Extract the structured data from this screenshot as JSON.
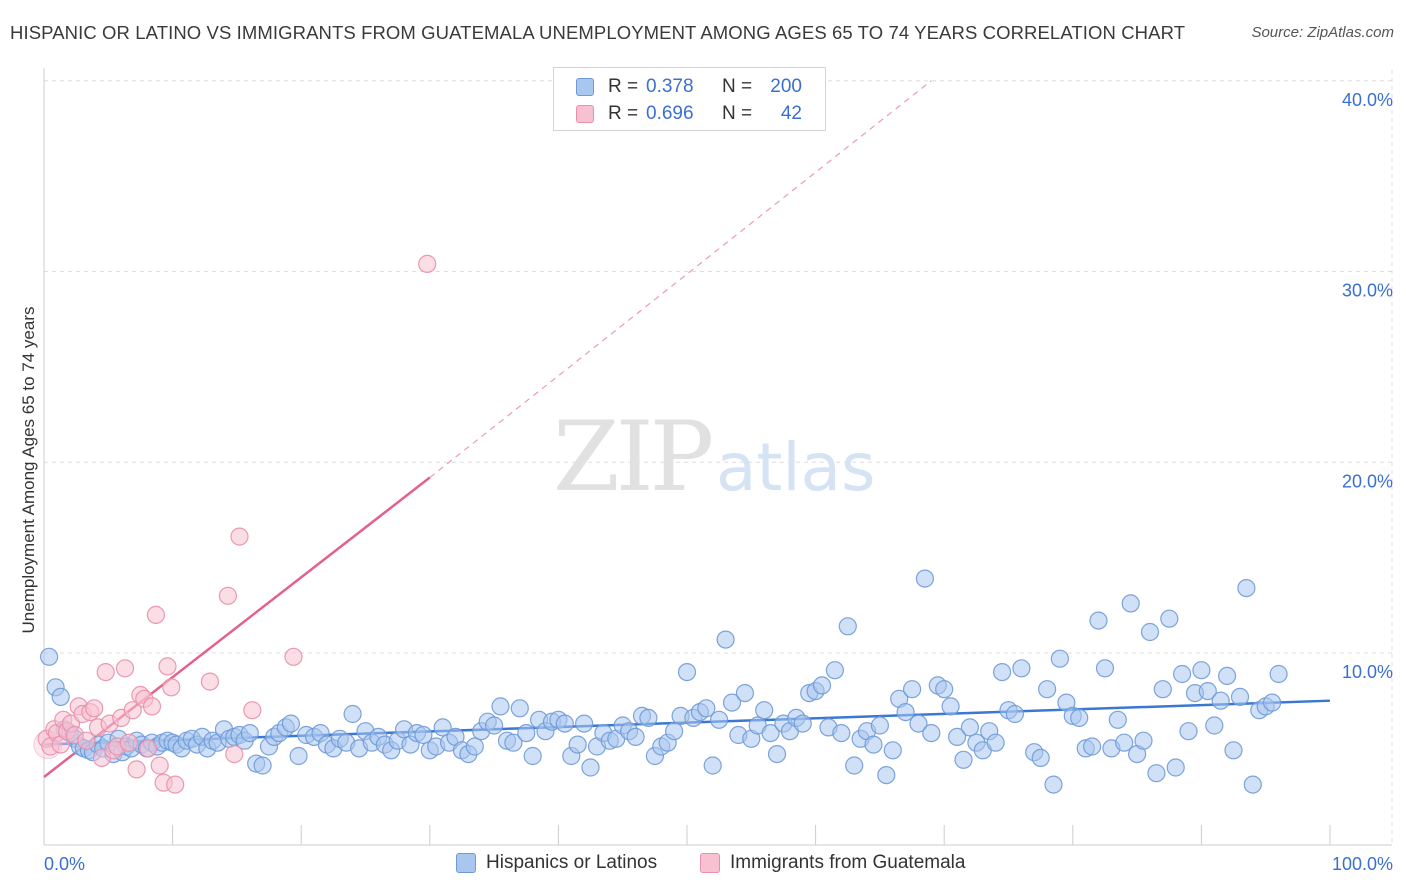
{
  "title": "HISPANIC OR LATINO VS IMMIGRANTS FROM GUATEMALA UNEMPLOYMENT AMONG AGES 65 TO 74 YEARS CORRELATION CHART",
  "source": "Source: ZipAtlas.com",
  "watermark": {
    "zip": "ZIP",
    "atlas": "atlas"
  },
  "legend_top": [
    {
      "r_label": "R =",
      "r_value": "0.378",
      "n_label": "N =",
      "n_value": "200",
      "color": "#a9c7ee",
      "border": "#6f9ad8"
    },
    {
      "r_label": "R =",
      "r_value": "0.696",
      "n_label": "N =",
      "n_value": "42",
      "color": "#f7c1d2",
      "border": "#e88fab"
    }
  ],
  "colors": {
    "blue_fill": "#a9c7ee",
    "blue_stroke": "#6f9ad8",
    "blue_line": "#3a78d4",
    "pink_fill": "#f7c1d2",
    "pink_stroke": "#e88fab",
    "pink_line": "#e3628b",
    "grid": "#dddddd",
    "tick_label": "#3a6fd1"
  },
  "chart_data": {
    "type": "scatter",
    "title": "HISPANIC OR LATINO VS IMMIGRANTS FROM GUATEMALA UNEMPLOYMENT AMONG AGES 65 TO 74 YEARS CORRELATION CHART",
    "xlabel": "",
    "ylabel": "Unemployment Among Ages 65 to 74 years",
    "xlim": [
      0,
      100
    ],
    "ylim": [
      0,
      41
    ],
    "x_tick_labels": [
      "0.0%",
      "100.0%"
    ],
    "y_ticks": [
      10,
      20,
      30,
      40
    ],
    "y_tick_labels": [
      "10.0%",
      "20.0%",
      "30.0%",
      "40.0%"
    ],
    "grid": true,
    "legend_position": "bottom",
    "series": [
      {
        "name": "Hispanics or Latinos",
        "r": 0.378,
        "n": 200,
        "trend": {
          "x": [
            0,
            100
          ],
          "y": [
            5.2,
            7.5
          ],
          "dashed": false
        },
        "points": [
          [
            0.4,
            9.8
          ],
          [
            0.9,
            8.2
          ],
          [
            1.3,
            7.7
          ],
          [
            1.6,
            6.0
          ],
          [
            2.0,
            5.8
          ],
          [
            2.4,
            5.5
          ],
          [
            2.8,
            5.1
          ],
          [
            3.1,
            5.0
          ],
          [
            3.5,
            4.9
          ],
          [
            3.8,
            4.8
          ],
          [
            4.2,
            5.2
          ],
          [
            4.6,
            5.0
          ],
          [
            5.0,
            5.3
          ],
          [
            5.4,
            4.7
          ],
          [
            5.8,
            5.5
          ],
          [
            6.1,
            4.8
          ],
          [
            6.4,
            5.1
          ],
          [
            6.8,
            5.0
          ],
          [
            7.2,
            5.4
          ],
          [
            7.6,
            5.2
          ],
          [
            8.0,
            5.0
          ],
          [
            8.4,
            5.3
          ],
          [
            8.8,
            5.1
          ],
          [
            9.2,
            5.3
          ],
          [
            9.6,
            5.4
          ],
          [
            10.0,
            5.3
          ],
          [
            10.3,
            5.2
          ],
          [
            10.7,
            5.0
          ],
          [
            11.1,
            5.4
          ],
          [
            11.5,
            5.5
          ],
          [
            11.9,
            5.2
          ],
          [
            12.3,
            5.6
          ],
          [
            12.7,
            5.0
          ],
          [
            13.1,
            5.4
          ],
          [
            13.5,
            5.3
          ],
          [
            14.0,
            6.0
          ],
          [
            14.4,
            5.5
          ],
          [
            14.8,
            5.6
          ],
          [
            15.2,
            5.7
          ],
          [
            15.6,
            5.4
          ],
          [
            16.0,
            5.8
          ],
          [
            16.5,
            4.2
          ],
          [
            17.0,
            4.1
          ],
          [
            17.5,
            5.1
          ],
          [
            17.9,
            5.6
          ],
          [
            18.3,
            5.8
          ],
          [
            18.8,
            6.1
          ],
          [
            19.2,
            6.3
          ],
          [
            19.8,
            4.6
          ],
          [
            20.4,
            5.7
          ],
          [
            21.0,
            5.6
          ],
          [
            21.5,
            5.8
          ],
          [
            22.0,
            5.2
          ],
          [
            22.5,
            5.0
          ],
          [
            23.0,
            5.5
          ],
          [
            23.5,
            5.3
          ],
          [
            24.0,
            6.8
          ],
          [
            24.5,
            5.0
          ],
          [
            25.0,
            5.9
          ],
          [
            25.5,
            5.3
          ],
          [
            26.0,
            5.6
          ],
          [
            26.5,
            5.2
          ],
          [
            27.0,
            4.9
          ],
          [
            27.5,
            5.4
          ],
          [
            28.0,
            6.0
          ],
          [
            28.5,
            5.2
          ],
          [
            29.0,
            5.8
          ],
          [
            29.5,
            5.7
          ],
          [
            30.0,
            4.9
          ],
          [
            30.5,
            5.1
          ],
          [
            31.0,
            6.1
          ],
          [
            31.5,
            5.3
          ],
          [
            32.0,
            5.6
          ],
          [
            32.5,
            4.9
          ],
          [
            33.0,
            4.7
          ],
          [
            33.5,
            5.1
          ],
          [
            34.0,
            5.9
          ],
          [
            34.5,
            6.4
          ],
          [
            35.0,
            6.2
          ],
          [
            35.5,
            7.2
          ],
          [
            36.0,
            5.4
          ],
          [
            36.5,
            5.3
          ],
          [
            37.0,
            7.1
          ],
          [
            37.5,
            5.8
          ],
          [
            38.0,
            4.6
          ],
          [
            38.5,
            6.5
          ],
          [
            39.0,
            5.9
          ],
          [
            39.5,
            6.4
          ],
          [
            40.0,
            6.5
          ],
          [
            40.5,
            6.3
          ],
          [
            41.0,
            4.6
          ],
          [
            41.5,
            5.2
          ],
          [
            42.0,
            6.3
          ],
          [
            42.5,
            4.0
          ],
          [
            43.0,
            5.1
          ],
          [
            43.5,
            5.8
          ],
          [
            44.0,
            5.4
          ],
          [
            44.5,
            5.5
          ],
          [
            45.0,
            6.2
          ],
          [
            45.5,
            5.9
          ],
          [
            46.0,
            5.6
          ],
          [
            46.5,
            6.7
          ],
          [
            47.0,
            6.6
          ],
          [
            47.5,
            4.6
          ],
          [
            48.0,
            5.1
          ],
          [
            48.5,
            5.3
          ],
          [
            49.0,
            5.9
          ],
          [
            49.5,
            6.7
          ],
          [
            50.0,
            9.0
          ],
          [
            50.5,
            6.6
          ],
          [
            51.0,
            6.9
          ],
          [
            51.5,
            7.1
          ],
          [
            52.0,
            4.1
          ],
          [
            52.5,
            6.5
          ],
          [
            53.0,
            10.7
          ],
          [
            53.5,
            7.4
          ],
          [
            54.0,
            5.7
          ],
          [
            54.5,
            7.9
          ],
          [
            55.0,
            5.5
          ],
          [
            55.5,
            6.2
          ],
          [
            56.0,
            7.0
          ],
          [
            56.5,
            5.8
          ],
          [
            57.0,
            4.7
          ],
          [
            57.5,
            6.3
          ],
          [
            58.0,
            5.9
          ],
          [
            58.5,
            6.6
          ],
          [
            59.0,
            6.3
          ],
          [
            59.5,
            7.9
          ],
          [
            60.0,
            8.0
          ],
          [
            60.5,
            8.3
          ],
          [
            61.0,
            6.1
          ],
          [
            61.5,
            9.1
          ],
          [
            62.0,
            5.8
          ],
          [
            62.5,
            11.4
          ],
          [
            63.0,
            4.1
          ],
          [
            63.5,
            5.5
          ],
          [
            64.0,
            5.9
          ],
          [
            64.5,
            5.2
          ],
          [
            65.0,
            6.2
          ],
          [
            65.5,
            3.6
          ],
          [
            66.0,
            4.9
          ],
          [
            66.5,
            7.6
          ],
          [
            67.0,
            6.9
          ],
          [
            67.5,
            8.1
          ],
          [
            68.0,
            6.3
          ],
          [
            68.5,
            13.9
          ],
          [
            69.0,
            5.8
          ],
          [
            69.5,
            8.3
          ],
          [
            70.0,
            8.1
          ],
          [
            70.5,
            7.2
          ],
          [
            71.0,
            5.6
          ],
          [
            71.5,
            4.4
          ],
          [
            72.0,
            6.1
          ],
          [
            72.5,
            5.3
          ],
          [
            73.0,
            4.9
          ],
          [
            73.5,
            5.9
          ],
          [
            74.0,
            5.3
          ],
          [
            74.5,
            9.0
          ],
          [
            75.0,
            7.0
          ],
          [
            75.5,
            6.8
          ],
          [
            76.0,
            9.2
          ],
          [
            77.0,
            4.8
          ],
          [
            77.5,
            4.5
          ],
          [
            78.0,
            8.1
          ],
          [
            78.5,
            3.1
          ],
          [
            79.0,
            9.7
          ],
          [
            79.5,
            7.4
          ],
          [
            80.0,
            6.7
          ],
          [
            80.5,
            6.6
          ],
          [
            81.0,
            5.0
          ],
          [
            81.5,
            5.1
          ],
          [
            82.0,
            11.7
          ],
          [
            82.5,
            9.2
          ],
          [
            83.0,
            5.0
          ],
          [
            83.5,
            6.5
          ],
          [
            84.0,
            5.3
          ],
          [
            84.5,
            12.6
          ],
          [
            85.0,
            4.7
          ],
          [
            85.5,
            5.4
          ],
          [
            86.0,
            11.1
          ],
          [
            86.5,
            3.7
          ],
          [
            87.0,
            8.1
          ],
          [
            87.5,
            11.8
          ],
          [
            88.0,
            4.0
          ],
          [
            88.5,
            8.9
          ],
          [
            89.0,
            5.9
          ],
          [
            89.5,
            7.9
          ],
          [
            90.0,
            9.1
          ],
          [
            90.5,
            8.0
          ],
          [
            91.0,
            6.2
          ],
          [
            91.5,
            7.5
          ],
          [
            92.0,
            8.8
          ],
          [
            92.5,
            4.9
          ],
          [
            93.0,
            7.7
          ],
          [
            93.5,
            13.4
          ],
          [
            94.0,
            3.1
          ],
          [
            94.5,
            7.0
          ],
          [
            95.0,
            7.2
          ],
          [
            95.5,
            7.4
          ],
          [
            96.0,
            8.9
          ]
        ]
      },
      {
        "name": "Immigrants from Guatemala",
        "r": 0.696,
        "n": 42,
        "trend": {
          "x": [
            0,
            30
          ],
          "y": [
            3.5,
            19.2
          ],
          "dashed": false,
          "extension": {
            "x": [
              30,
              69
            ],
            "y": [
              19.2,
              40.0
            ],
            "dashed": true
          }
        },
        "points": [
          [
            0.2,
            5.5
          ],
          [
            0.5,
            5.1
          ],
          [
            0.8,
            6.0
          ],
          [
            1.0,
            5.8
          ],
          [
            1.3,
            5.2
          ],
          [
            1.5,
            6.5
          ],
          [
            1.8,
            5.9
          ],
          [
            2.1,
            6.3
          ],
          [
            2.4,
            5.7
          ],
          [
            2.7,
            7.2
          ],
          [
            3.0,
            6.8
          ],
          [
            3.3,
            5.4
          ],
          [
            3.6,
            6.9
          ],
          [
            3.9,
            7.1
          ],
          [
            4.2,
            6.1
          ],
          [
            4.5,
            4.5
          ],
          [
            4.8,
            9.0
          ],
          [
            5.1,
            6.3
          ],
          [
            5.4,
            4.9
          ],
          [
            5.7,
            5.1
          ],
          [
            6.0,
            6.6
          ],
          [
            6.3,
            9.2
          ],
          [
            6.6,
            5.3
          ],
          [
            6.9,
            7.0
          ],
          [
            7.2,
            3.9
          ],
          [
            7.5,
            7.8
          ],
          [
            7.8,
            7.6
          ],
          [
            8.1,
            5.0
          ],
          [
            8.4,
            7.2
          ],
          [
            8.7,
            12.0
          ],
          [
            9.0,
            4.1
          ],
          [
            9.3,
            3.2
          ],
          [
            9.6,
            9.3
          ],
          [
            9.9,
            8.2
          ],
          [
            10.2,
            3.1
          ],
          [
            12.9,
            8.5
          ],
          [
            14.3,
            13.0
          ],
          [
            14.8,
            4.7
          ],
          [
            15.2,
            16.1
          ],
          [
            16.2,
            7.0
          ],
          [
            19.4,
            9.8
          ],
          [
            29.8,
            30.4
          ]
        ]
      }
    ]
  },
  "bottom_legend": [
    {
      "label": "Hispanics or Latinos"
    },
    {
      "label": "Immigrants from Guatemala"
    }
  ]
}
